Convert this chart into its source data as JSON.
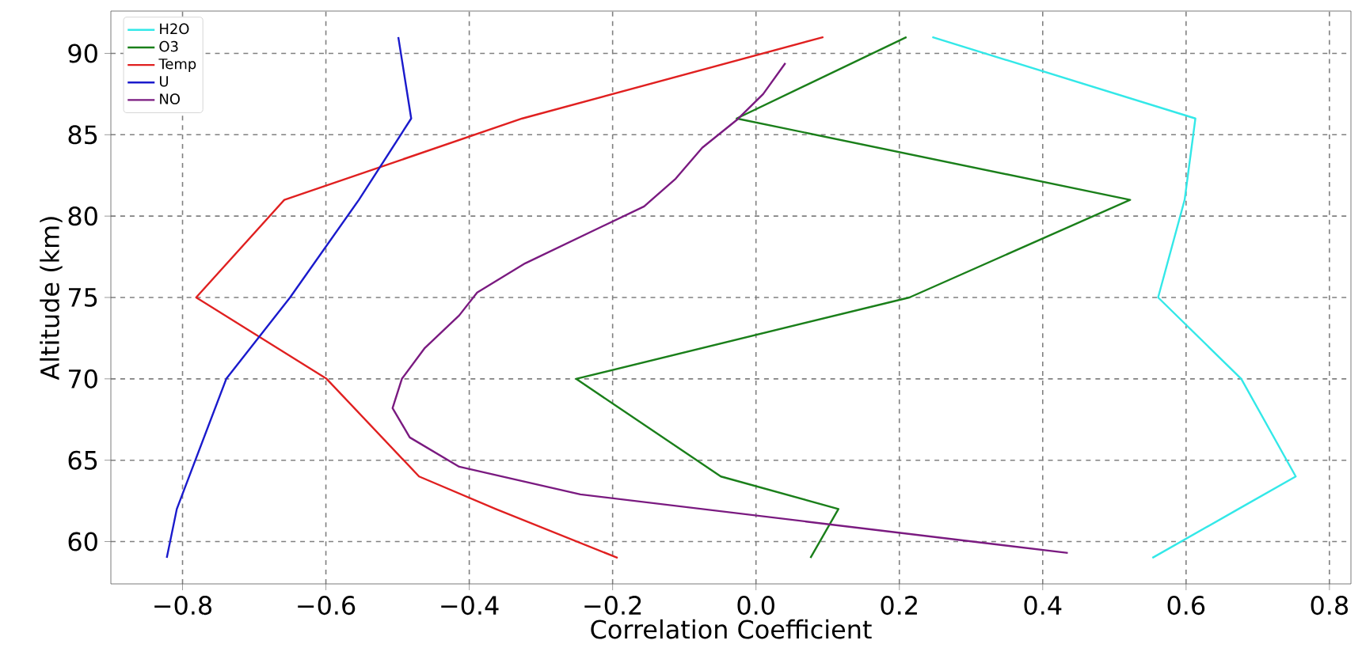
{
  "chart_data": {
    "type": "line",
    "xlabel": "Correlation Coefficient",
    "ylabel": "Altitude (km)",
    "xlim": [
      -0.9,
      0.83
    ],
    "ylim": [
      57.4,
      92.6
    ],
    "xticks": [
      {
        "value": -0.8,
        "label": "−0.8"
      },
      {
        "value": -0.6,
        "label": "−0.6"
      },
      {
        "value": -0.4,
        "label": "−0.4"
      },
      {
        "value": -0.2,
        "label": "−0.2"
      },
      {
        "value": 0,
        "label": "0.0"
      },
      {
        "value": 0.2,
        "label": "0.2"
      },
      {
        "value": 0.4,
        "label": "0.4"
      },
      {
        "value": 0.6,
        "label": "0.6"
      },
      {
        "value": 0.8,
        "label": "0.8"
      }
    ],
    "yticks": [
      60,
      65,
      70,
      75,
      80,
      85,
      90
    ],
    "grid": true,
    "legend": "top left",
    "series": [
      {
        "name": "H2O",
        "color": "#33e8e8",
        "x": [
          0.553,
          0.673,
          0.753,
          0.677,
          0.561,
          0.598,
          0.613,
          0.246
        ],
        "values": [
          59,
          62,
          64,
          70,
          75,
          81,
          86,
          91
        ]
      },
      {
        "name": "O3",
        "color": "#1a7f1a",
        "x": [
          0.076,
          0.115,
          -0.049,
          -0.251,
          0.214,
          0.522,
          -0.027,
          0.21
        ],
        "values": [
          59,
          62,
          64,
          70,
          75,
          81,
          86,
          91
        ]
      },
      {
        "name": "Temp",
        "color": "#e02020",
        "x": [
          -0.193,
          -0.363,
          -0.47,
          -0.599,
          -0.781,
          -0.658,
          -0.326,
          0.094
        ],
        "values": [
          59,
          62,
          64,
          70,
          75,
          81,
          86,
          91
        ]
      },
      {
        "name": "U",
        "color": "#1a1acc",
        "x": [
          -0.822,
          -0.808,
          -0.739,
          -0.65,
          -0.554,
          -0.481,
          -0.499
        ],
        "values": [
          59,
          62,
          70,
          75,
          81,
          86,
          91
        ]
      },
      {
        "name": "NO",
        "color": "#7a1a80",
        "x": [
          0.435,
          -0.245,
          -0.414,
          -0.483,
          -0.507,
          -0.494,
          -0.462,
          -0.414,
          -0.389,
          -0.322,
          -0.156,
          -0.112,
          -0.075,
          -0.027,
          0.01,
          0.041
        ],
        "values": [
          59.3,
          62.9,
          64.6,
          66.4,
          68.2,
          70,
          71.9,
          73.9,
          75.3,
          77.1,
          80.6,
          82.3,
          84.2,
          85.9,
          87.5,
          89.4
        ]
      }
    ]
  }
}
